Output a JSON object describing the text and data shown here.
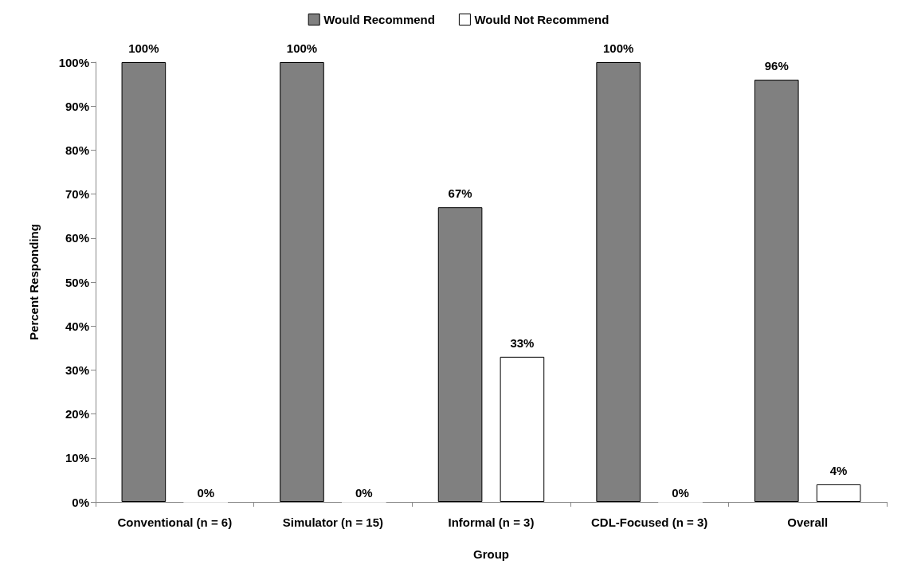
{
  "chart_data": {
    "type": "bar",
    "xlabel": "Group",
    "ylabel": "Percent Responding",
    "categories": [
      "Conventional (n = 6)",
      "Simulator (n = 15)",
      "Informal (n = 3)",
      "CDL-Focused (n = 3)",
      "Overall"
    ],
    "series": [
      {
        "name": "Would Recommend",
        "color": "#808080",
        "values": [
          100,
          100,
          67,
          100,
          96
        ],
        "value_labels": [
          "100%",
          "100%",
          "67%",
          "100%",
          "96%"
        ]
      },
      {
        "name": "Would Not Recommend",
        "color": "#ffffff",
        "values": [
          0,
          0,
          33,
          0,
          4
        ],
        "value_labels": [
          "0%",
          "0%",
          "33%",
          "0%",
          "4%"
        ]
      }
    ],
    "ylim": [
      0,
      100
    ],
    "yticks": [
      {
        "value": 0,
        "label": "0%"
      },
      {
        "value": 10,
        "label": "10%"
      },
      {
        "value": 20,
        "label": "20%"
      },
      {
        "value": 30,
        "label": "30%"
      },
      {
        "value": 40,
        "label": "40%"
      },
      {
        "value": 50,
        "label": "50%"
      },
      {
        "value": 60,
        "label": "60%"
      },
      {
        "value": 70,
        "label": "70%"
      },
      {
        "value": 80,
        "label": "80%"
      },
      {
        "value": 90,
        "label": "90%"
      },
      {
        "value": 100,
        "label": "100%"
      }
    ],
    "grid": false,
    "legend": "top"
  }
}
